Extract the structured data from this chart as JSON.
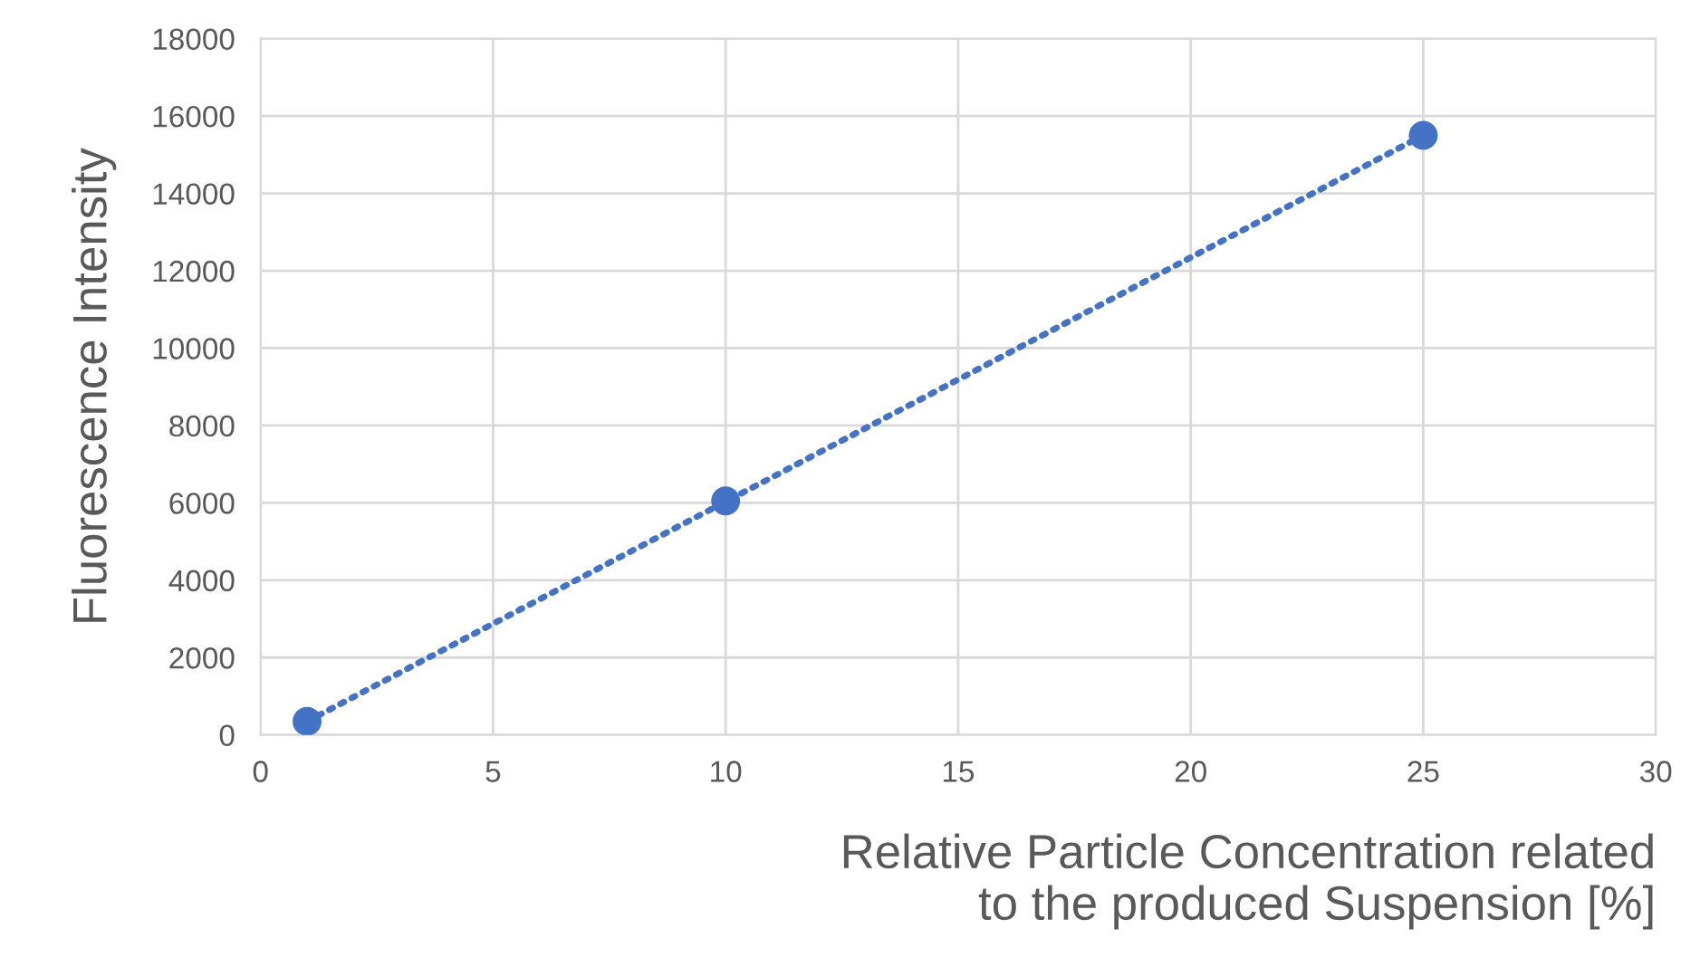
{
  "chart_data": {
    "type": "scatter",
    "xlabel": "Relative Particle Concentration related\nto the produced Suspension [%]",
    "ylabel": "Fluorescence Intensity",
    "series": [
      {
        "type": "line",
        "color": "#4472c4",
        "x": [
          1,
          25
        ],
        "values": [
          350,
          15500
        ],
        "line_style": "dotted"
      },
      {
        "color": "#4472c4",
        "x": [
          1,
          10,
          25
        ],
        "values": [
          350,
          6050,
          15500
        ],
        "marker": "circle"
      }
    ],
    "xlim": [
      0,
      30
    ],
    "xticks": [
      0,
      5,
      10,
      15,
      20,
      25,
      30
    ],
    "ylim": [
      0,
      18000
    ],
    "yticks": [
      0,
      2000,
      4000,
      6000,
      8000,
      10000,
      12000,
      14000,
      16000,
      18000
    ],
    "grid": true,
    "legend": false
  }
}
